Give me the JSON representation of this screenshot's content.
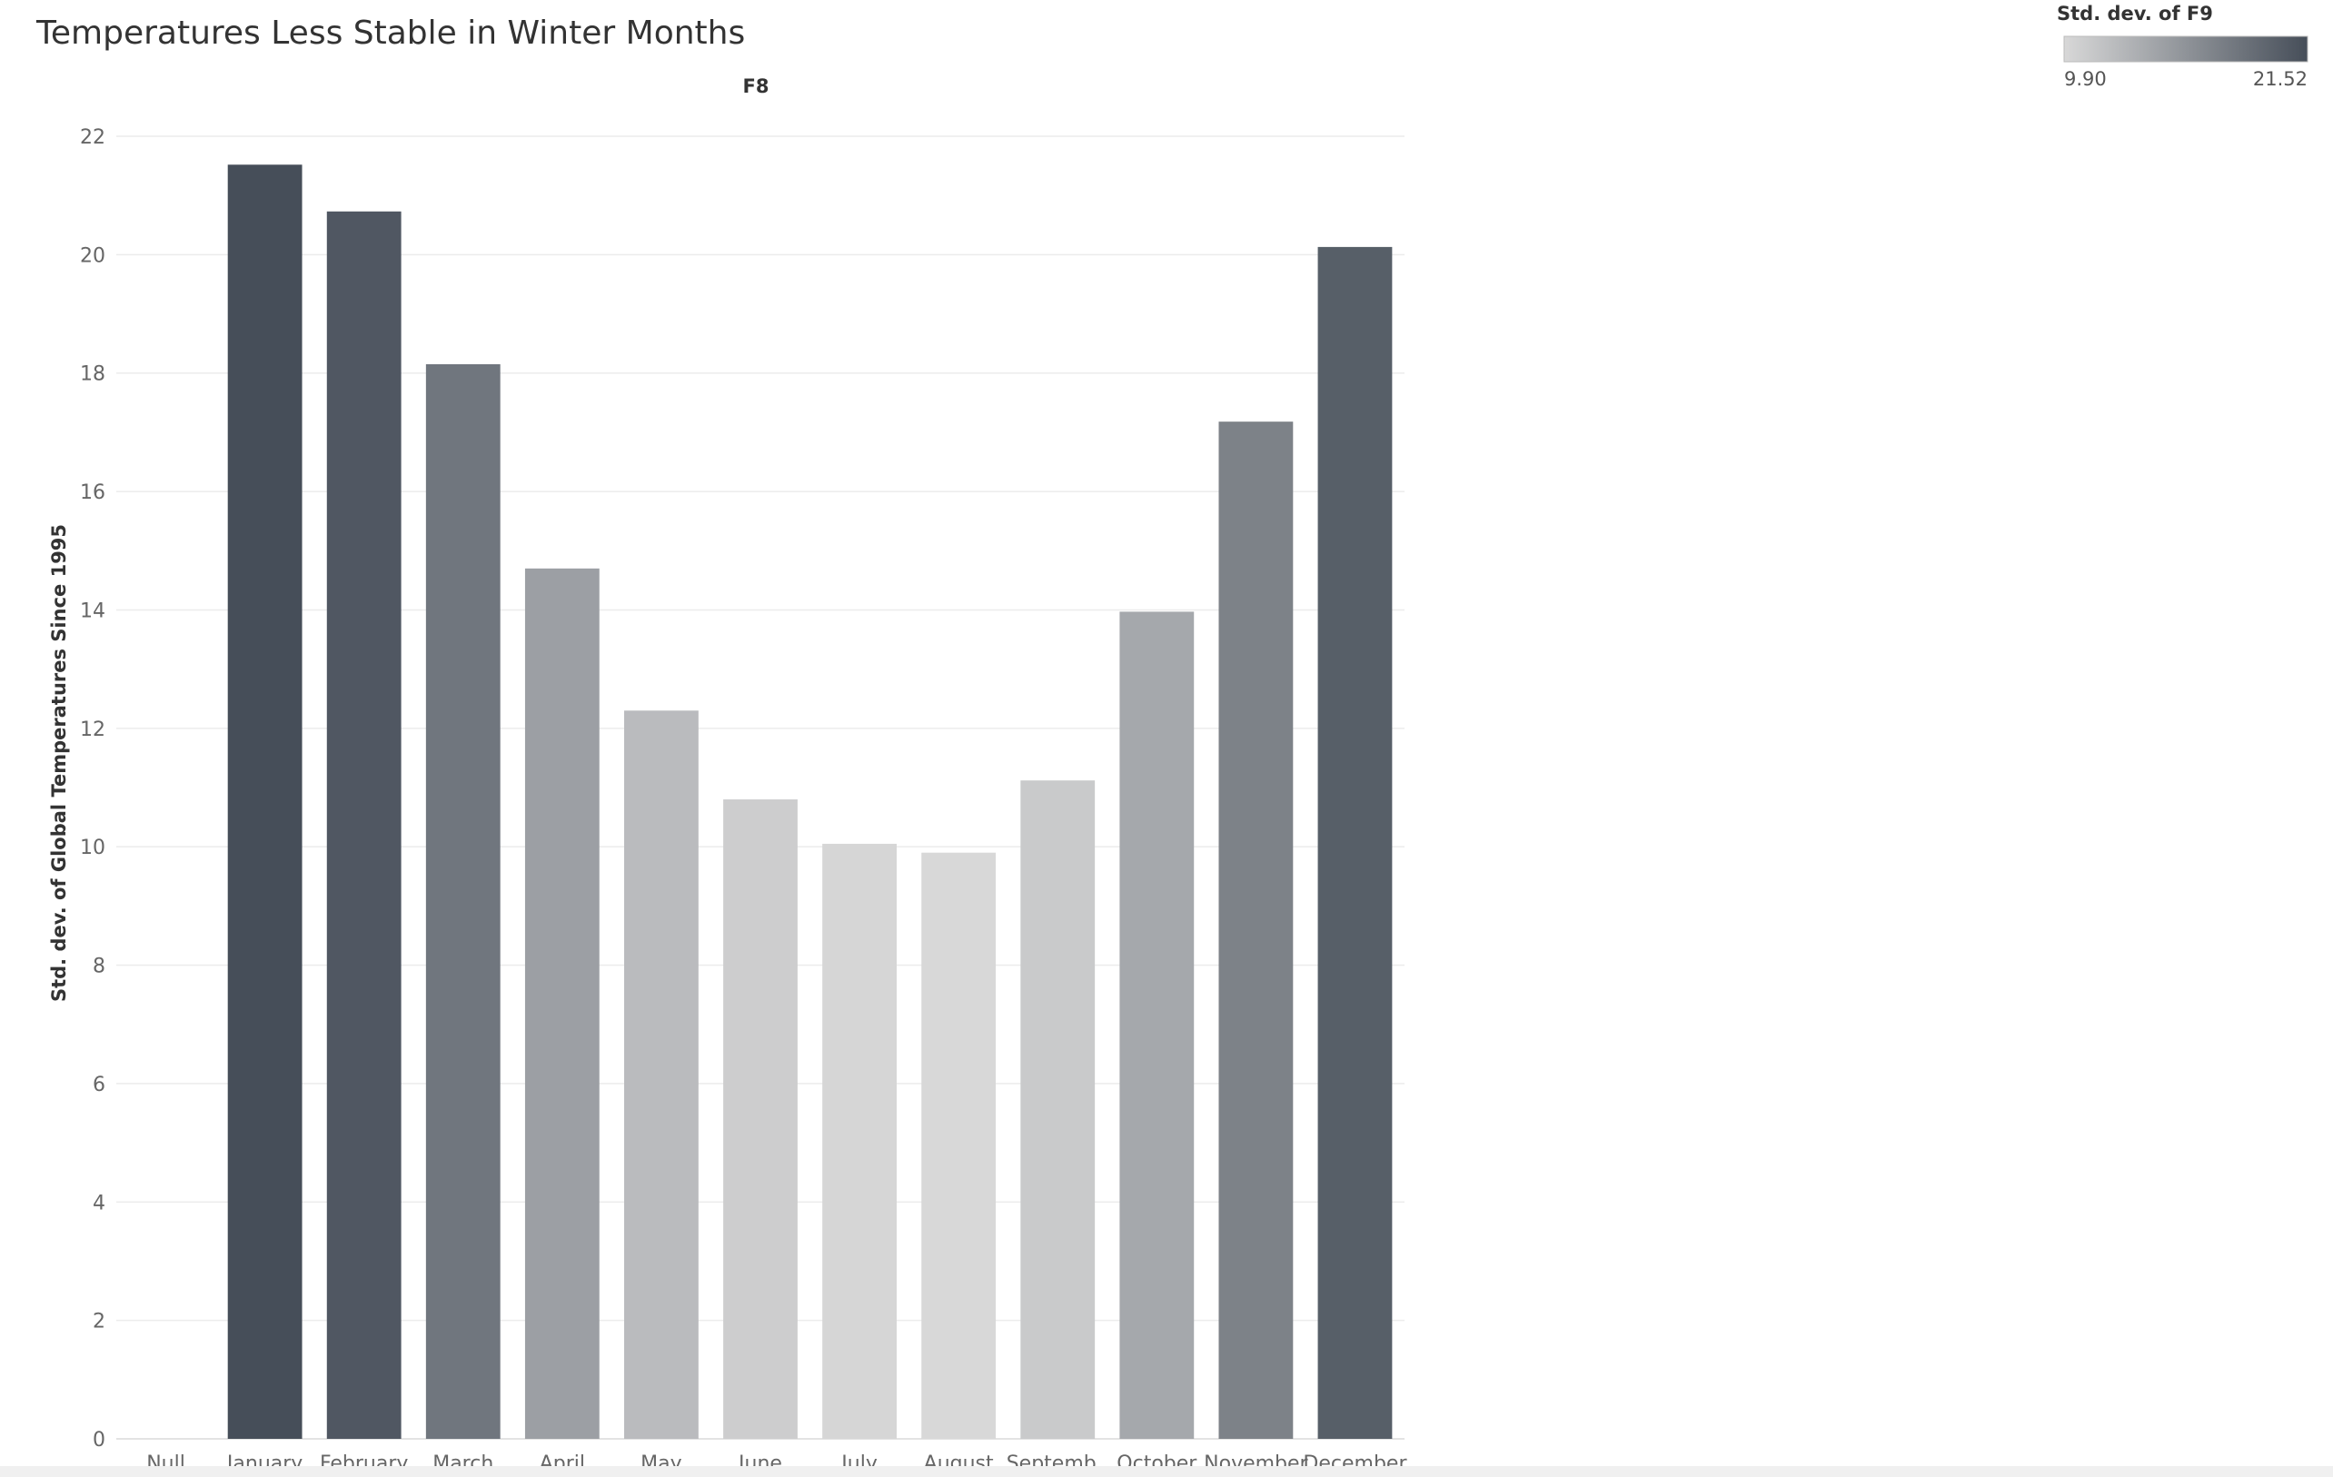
{
  "chart_data": {
    "type": "bar",
    "title": "Temperatures Less Stable in Winter Months",
    "column_header": "F8",
    "ylabel": "Std. dev. of Global Temperatures Since 1995",
    "categories": [
      "Null",
      "January",
      "February",
      "March",
      "April",
      "May",
      "June",
      "July",
      "August",
      "Septemb..",
      "October",
      "November",
      "December"
    ],
    "values": [
      null,
      21.52,
      20.73,
      18.15,
      14.7,
      12.3,
      10.8,
      10.05,
      9.9,
      11.12,
      13.97,
      17.18,
      20.13
    ],
    "ylim": [
      0,
      22
    ],
    "yticks": [
      "0",
      "2",
      "4",
      "6",
      "8",
      "10",
      "12",
      "14",
      "16",
      "18",
      "20",
      "22"
    ],
    "grid": true,
    "legend": {
      "title": "Std. dev. of F9",
      "min_label": "9.90",
      "max_label": "21.52",
      "min": 9.9,
      "max": 21.52,
      "color_low": "#d8d8d8",
      "color_high": "#464e59",
      "placement": "top-right"
    }
  }
}
